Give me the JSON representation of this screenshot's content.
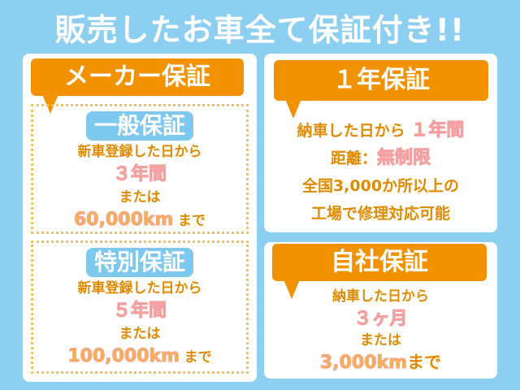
{
  "title": "販売したお車全て保証付き!!",
  "maker": {
    "header": "メーカー保証",
    "general": {
      "label": "一般保証",
      "line1": "新車登録した日から",
      "period": "３年間",
      "or": "または",
      "distance": "60,000km",
      "until": "まで"
    },
    "special": {
      "label": "特別保証",
      "line1": "新車登録した日から",
      "period": "５年間",
      "or": "または",
      "distance": "100,000km",
      "until": "まで"
    }
  },
  "one_year": {
    "header": "１年保証",
    "line1": "納車した日から",
    "period": "１年間",
    "dist_label": "距離：",
    "dist_value": "無制限",
    "line3": "全国3,000か所以上の",
    "line4": "工場で修理対応可能"
  },
  "inhouse": {
    "header": "自社保証",
    "line1": "納車した日から",
    "period": "３ヶ月",
    "or": "または",
    "distance": "3,000km",
    "until": "まで"
  },
  "colors": {
    "background": "#8dcff0",
    "orange": "#f39200",
    "blue_label": "#7cc8ee"
  }
}
